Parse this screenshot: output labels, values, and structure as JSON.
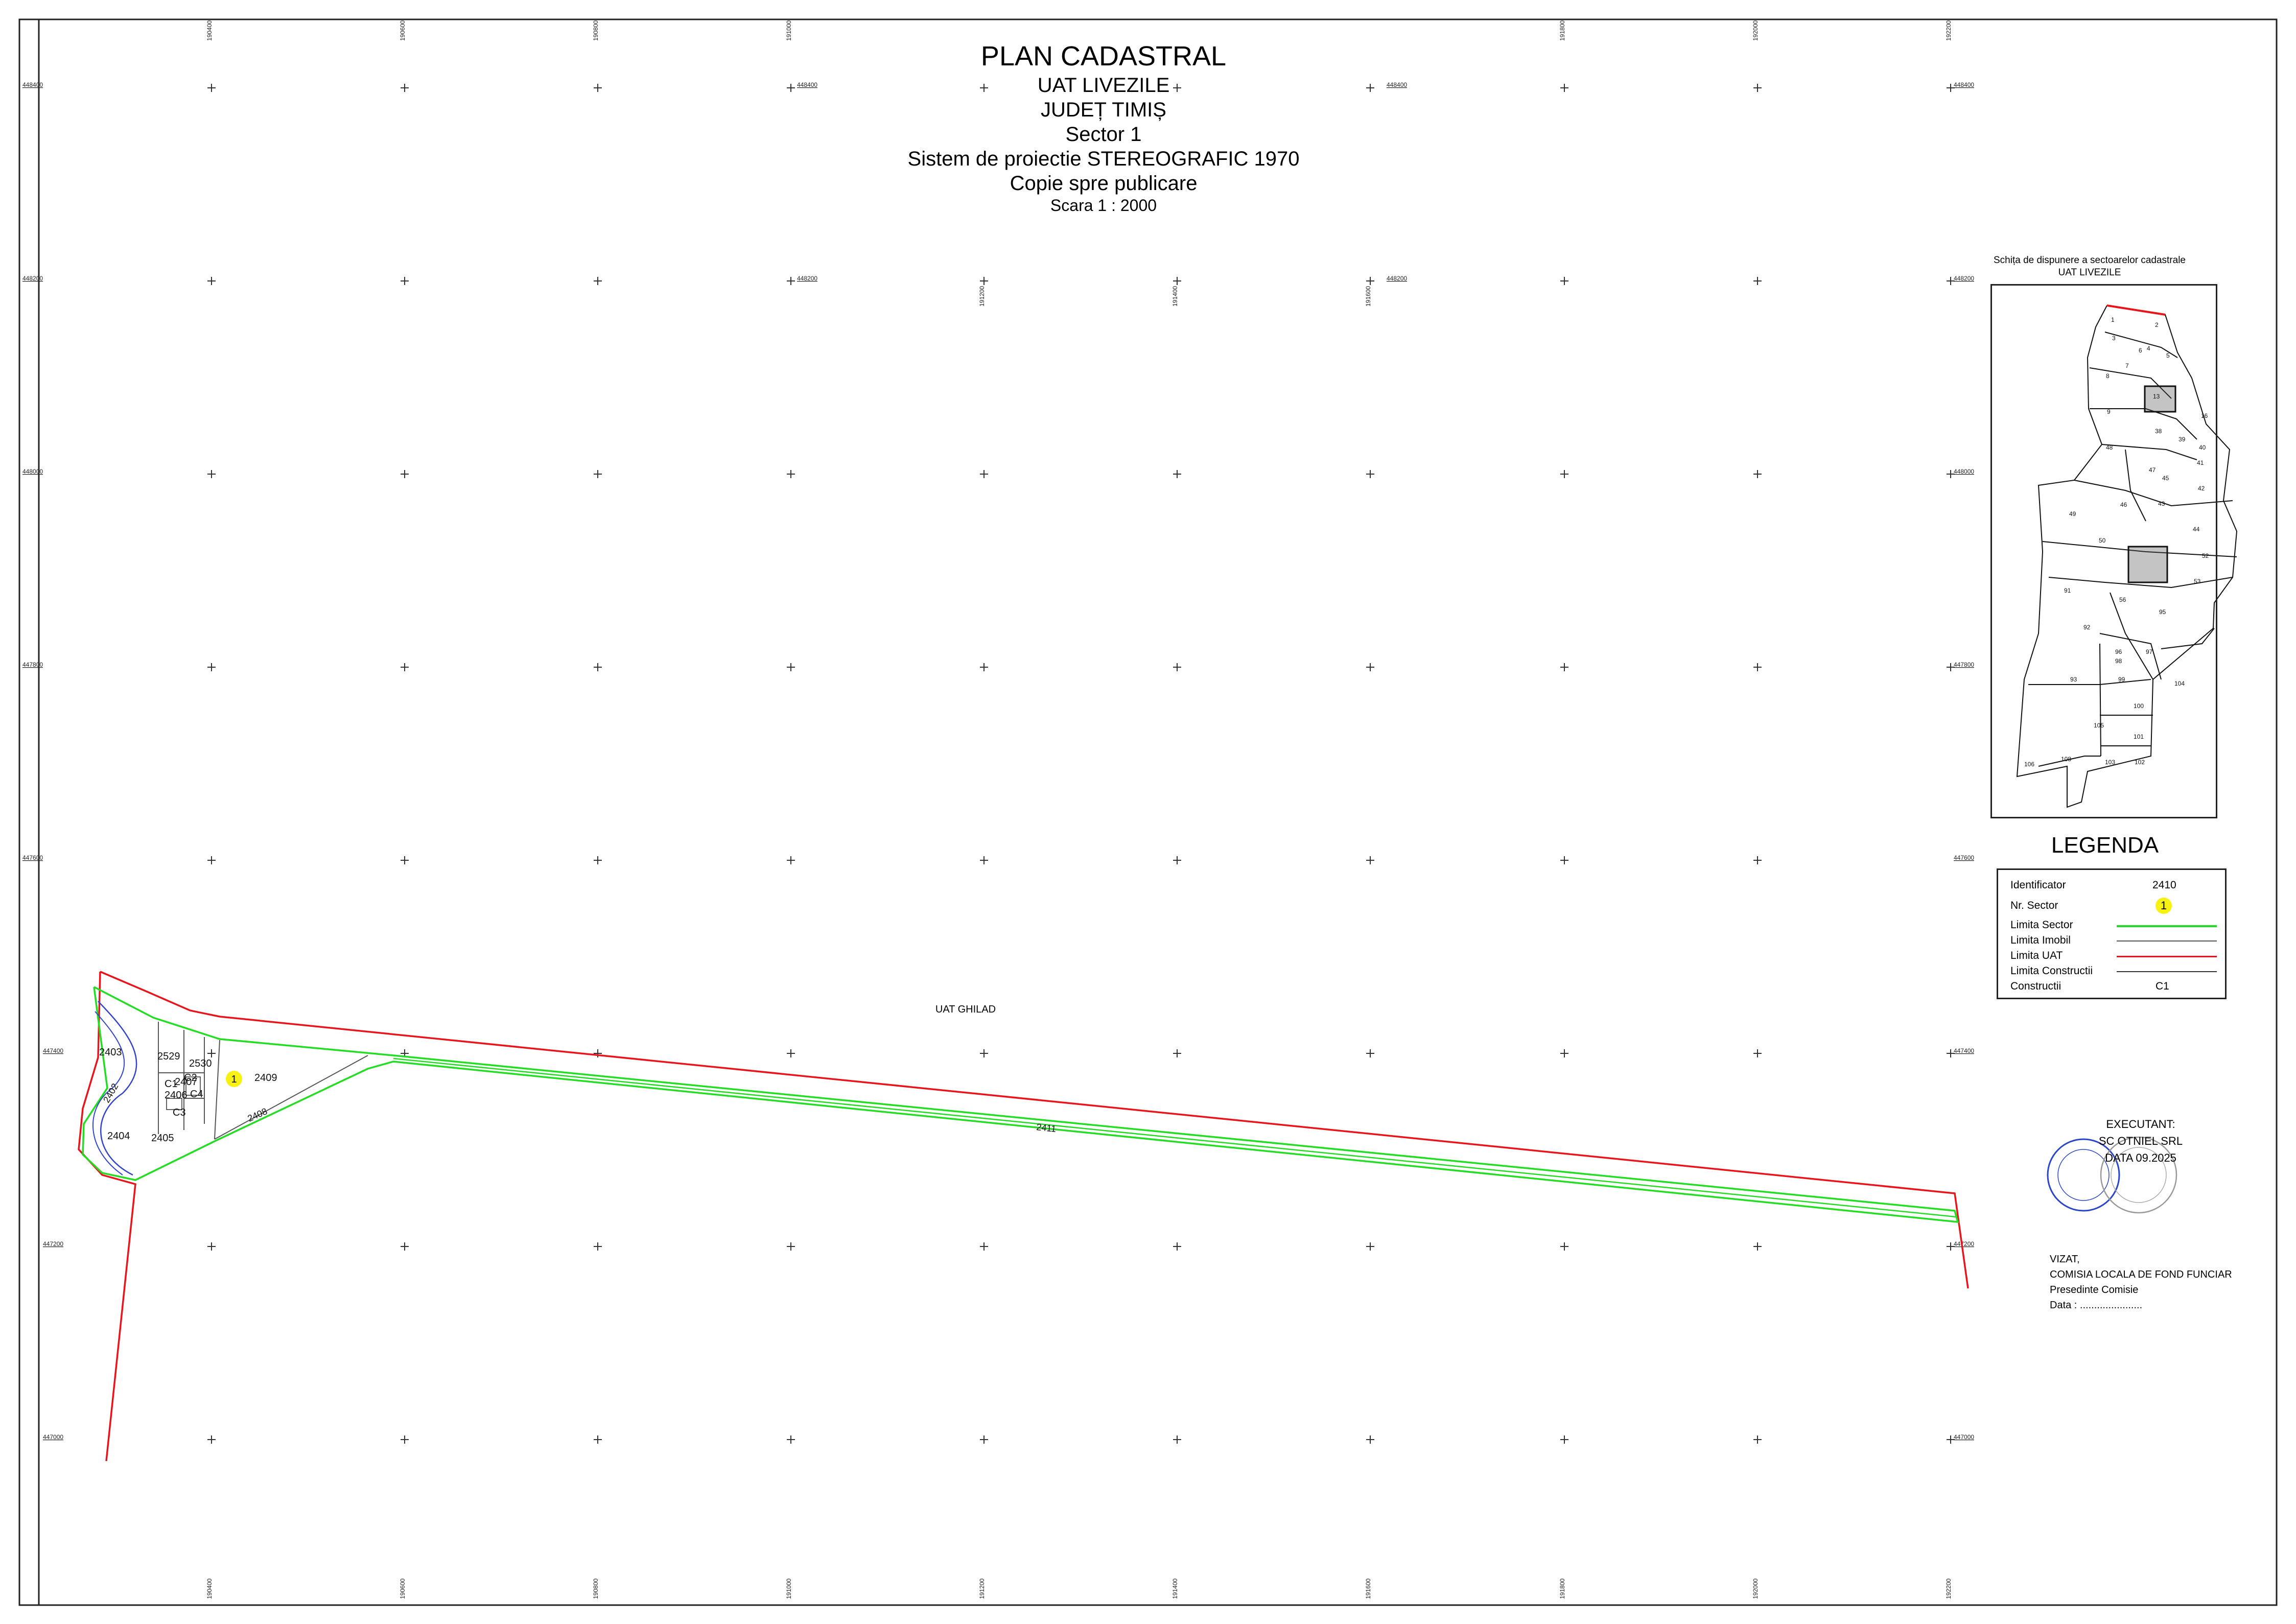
{
  "title": {
    "main": "PLAN CADASTRAL",
    "uat": "UAT LIVEZILE",
    "judet": "JUDEȚ TIMIȘ",
    "sector": "Sector 1",
    "sistem": "Sistem de proiectie STEREOGRAFIC 1970",
    "copie": "Copie spre publicare",
    "scara": "Scara 1 : 2000"
  },
  "grid": {
    "x_labels_top": [
      "190400",
      "190600",
      "190800",
      "191000",
      "191800",
      "192000",
      "192200"
    ],
    "x_labels_inner": [
      "191200",
      "191400",
      "191600"
    ],
    "y_labels_left": [
      "448400",
      "448200",
      "448000",
      "447800",
      "447600",
      "447400",
      "447200",
      "447000"
    ],
    "y_labels_mid": [
      "448400",
      "448200",
      "448400",
      "448200"
    ]
  },
  "map": {
    "neighbor": "UAT GHILAD",
    "sector_no": "1",
    "parcels": {
      "p2403": "2403",
      "p2402": "2402",
      "p2404": "2404",
      "p2405": "2405",
      "p2406": "2406",
      "p2407": "2407",
      "p2408": "2408",
      "p2409": "2409",
      "p2411": "2411",
      "p2529": "2529",
      "p2530": "2530"
    },
    "constructions": {
      "c1": "C1",
      "c2": "C2",
      "c3": "C3",
      "c4": "C4"
    }
  },
  "inset": {
    "title_line1": "Schița de dispunere a sectoarelor cadastrale",
    "title_line2": "UAT LIVEZILE",
    "sector_numbers": [
      "1",
      "2",
      "3",
      "4",
      "5",
      "6",
      "7",
      "8",
      "9",
      "13",
      "16",
      "38",
      "39",
      "40",
      "41",
      "42",
      "43",
      "44",
      "45",
      "46",
      "47",
      "48",
      "49",
      "50",
      "52",
      "53",
      "56",
      "91",
      "92",
      "93",
      "95",
      "96",
      "97",
      "98",
      "99",
      "100",
      "101",
      "102",
      "103",
      "104",
      "105",
      "106",
      "108"
    ]
  },
  "legend": {
    "title": "LEGENDA",
    "rows": {
      "identificator": "Identificator",
      "identificator_val": "2410",
      "nr_sector": "Nr. Sector",
      "nr_sector_val": "1",
      "limita_sector": "Limita Sector",
      "limita_imobil": "Limita Imobil",
      "limita_uat": "Limita UAT",
      "limita_constructii": "Limita Constructii",
      "constructii": "Constructii",
      "constructii_val": "C1"
    },
    "colors": {
      "sector": "#22dd22",
      "imobil": "#555555",
      "uat": "#e8141b",
      "constructii": "#333333"
    }
  },
  "executant": {
    "label": "EXECUTANT:",
    "firm": "SC OTNIEL SRL",
    "date": "DATA 09.2025"
  },
  "vizat": {
    "label": "VIZAT,",
    "comisia": "COMISIA LOCALA DE FOND FUNCIAR",
    "presedinte": "Presedinte Comisie",
    "data": "Data : ......................"
  }
}
